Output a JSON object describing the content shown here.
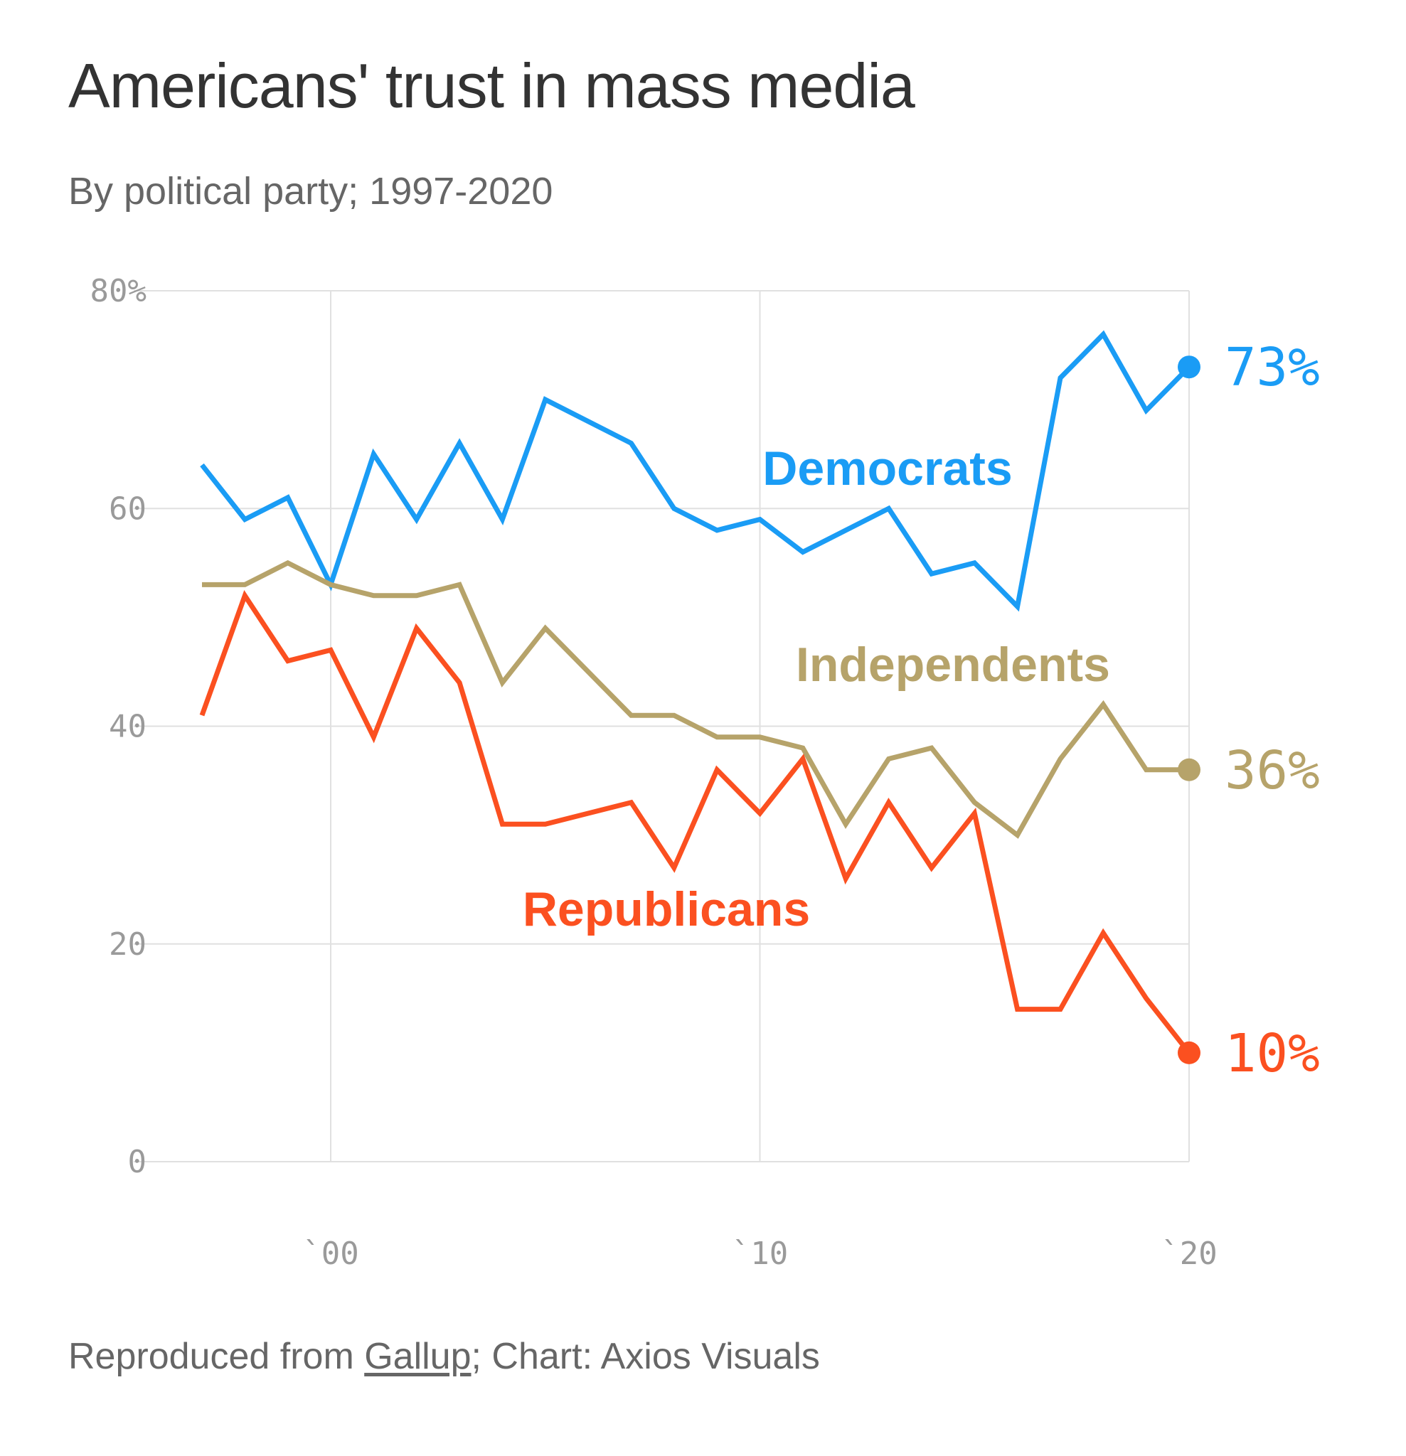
{
  "footer": {
    "prefix": "Reproduced from ",
    "source": "Gallup",
    "suffix": "; Chart: Axios Visuals"
  },
  "chart_data": {
    "type": "line",
    "title": "Americans' trust in mass media",
    "subtitle": "By political party; 1997-2020",
    "xlabel": "",
    "ylabel": "",
    "x": [
      1997,
      1998,
      1999,
      2000,
      2001,
      2002,
      2003,
      2004,
      2005,
      2006,
      2007,
      2008,
      2009,
      2010,
      2011,
      2012,
      2013,
      2014,
      2015,
      2016,
      2017,
      2018,
      2019,
      2020
    ],
    "xlim": [
      1997,
      2020
    ],
    "ylim": [
      0,
      80
    ],
    "yticks": [
      0,
      20,
      40,
      60,
      80
    ],
    "ytick_labels": [
      "0",
      "20",
      "40",
      "60",
      "80%"
    ],
    "xticks": [
      2000,
      2010,
      2020
    ],
    "xtick_labels": [
      "`00",
      "`10",
      "`20"
    ],
    "grid": true,
    "legend": "inline labels",
    "series": [
      {
        "name": "Democrats",
        "color": "#1a9cf5",
        "end_label": "73%",
        "values": [
          64,
          59,
          61,
          53,
          65,
          59,
          66,
          59,
          70,
          68,
          66,
          60,
          58,
          59,
          56,
          58,
          60,
          54,
          55,
          51,
          72,
          76,
          69,
          73
        ]
      },
      {
        "name": "Independents",
        "color": "#b6a36a",
        "end_label": "36%",
        "values": [
          53,
          53,
          55,
          53,
          52,
          52,
          53,
          44,
          49,
          45,
          41,
          41,
          39,
          39,
          38,
          31,
          37,
          38,
          33,
          30,
          37,
          42,
          36,
          36
        ]
      },
      {
        "name": "Republicans",
        "color": "#fb5020",
        "end_label": "10%",
        "values": [
          41,
          52,
          46,
          47,
          39,
          49,
          44,
          31,
          31,
          32,
          33,
          27,
          36,
          32,
          37,
          26,
          33,
          27,
          32,
          14,
          14,
          21,
          15,
          10
        ]
      }
    ]
  }
}
